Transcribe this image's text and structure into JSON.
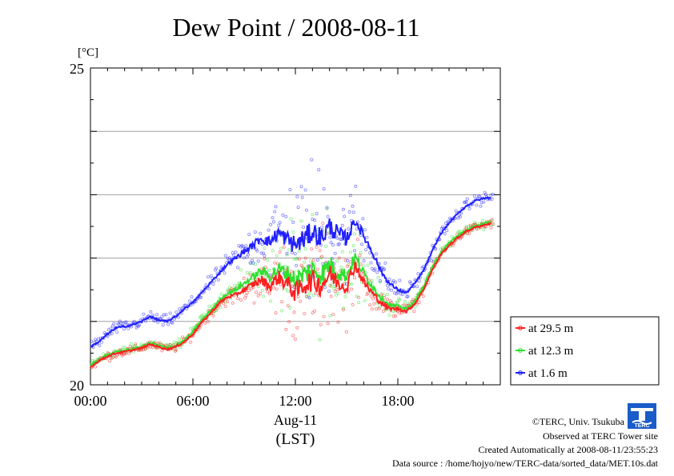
{
  "chart_data": {
    "type": "line",
    "title": "Dew Point / 2008-08-11",
    "ylabel": "[°C]",
    "xlabel": "Aug-11",
    "xlabel2": "(LST)",
    "ylim": [
      20,
      25
    ],
    "xlim": [
      0,
      24
    ],
    "y_ticks": [
      "20",
      "25"
    ],
    "x_ticks": [
      {
        "value": 0,
        "label": "00:00"
      },
      {
        "value": 6,
        "label": "06:00"
      },
      {
        "value": 12,
        "label": "12:00"
      },
      {
        "value": 18,
        "label": "18:00"
      }
    ],
    "grid": true,
    "legend_position": "right",
    "series": [
      {
        "name": "at 29.5 m",
        "color": "#ff2020",
        "x": [
          0,
          0.5,
          1,
          1.5,
          2,
          2.5,
          3,
          3.5,
          4,
          4.5,
          5,
          5.5,
          6,
          6.5,
          7,
          7.5,
          8,
          8.5,
          9,
          9.5,
          10,
          10.5,
          11,
          11.5,
          12,
          12.5,
          13,
          13.5,
          14,
          14.5,
          15,
          15.5,
          16,
          16.5,
          17,
          17.5,
          18,
          18.5,
          19,
          19.5,
          20,
          20.5,
          21,
          21.5,
          22,
          22.5,
          23,
          23.5
        ],
        "y": [
          20.28,
          20.38,
          20.45,
          20.5,
          20.52,
          20.55,
          20.58,
          20.64,
          20.6,
          20.56,
          20.6,
          20.68,
          20.8,
          20.98,
          21.12,
          21.28,
          21.38,
          21.42,
          21.5,
          21.58,
          21.66,
          21.55,
          21.7,
          21.6,
          21.45,
          21.58,
          21.65,
          21.56,
          21.75,
          21.62,
          21.55,
          21.9,
          21.62,
          21.45,
          21.3,
          21.2,
          21.2,
          21.16,
          21.28,
          21.5,
          21.8,
          22.05,
          22.2,
          22.32,
          22.42,
          22.48,
          22.52,
          22.55
        ]
      },
      {
        "name": "at 12.3 m",
        "color": "#30e030",
        "x": [
          0,
          0.5,
          1,
          1.5,
          2,
          2.5,
          3,
          3.5,
          4,
          4.5,
          5,
          5.5,
          6,
          6.5,
          7,
          7.5,
          8,
          8.5,
          9,
          9.5,
          10,
          10.5,
          11,
          11.5,
          12,
          12.5,
          13,
          13.5,
          14,
          14.5,
          15,
          15.5,
          16,
          16.5,
          17,
          17.5,
          18,
          18.5,
          19,
          19.5,
          20,
          20.5,
          21,
          21.5,
          22,
          22.5,
          23,
          23.5
        ],
        "y": [
          20.3,
          20.4,
          20.47,
          20.52,
          20.54,
          20.57,
          20.6,
          20.66,
          20.62,
          20.58,
          20.62,
          20.7,
          20.84,
          21.02,
          21.16,
          21.32,
          21.44,
          21.5,
          21.6,
          21.7,
          21.8,
          21.72,
          21.82,
          21.76,
          21.66,
          21.74,
          21.82,
          21.74,
          21.9,
          21.78,
          21.72,
          22.02,
          21.76,
          21.56,
          21.38,
          21.26,
          21.24,
          21.2,
          21.32,
          21.55,
          21.84,
          22.08,
          22.24,
          22.35,
          22.44,
          22.5,
          22.54,
          22.57
        ]
      },
      {
        "name": "at 1.6 m",
        "color": "#2020ff",
        "x": [
          0,
          0.5,
          1,
          1.5,
          2,
          2.5,
          3,
          3.5,
          4,
          4.5,
          5,
          5.5,
          6,
          6.5,
          7,
          7.5,
          8,
          8.5,
          9,
          9.5,
          10,
          10.5,
          11,
          11.5,
          12,
          12.5,
          13,
          13.5,
          14,
          14.5,
          15,
          15.5,
          16,
          16.5,
          17,
          17.5,
          18,
          18.5,
          19,
          19.5,
          20,
          20.5,
          21,
          21.5,
          22,
          22.5,
          23,
          23.5
        ],
        "y": [
          20.6,
          20.68,
          20.8,
          20.9,
          20.92,
          20.95,
          21.0,
          21.08,
          21.02,
          21.0,
          21.08,
          21.2,
          21.3,
          21.45,
          21.6,
          21.75,
          21.9,
          22.0,
          22.1,
          22.2,
          22.32,
          22.25,
          22.4,
          22.3,
          22.2,
          22.3,
          22.42,
          22.32,
          22.5,
          22.38,
          22.3,
          22.6,
          22.35,
          22.1,
          21.8,
          21.6,
          21.5,
          21.45,
          21.6,
          21.8,
          22.1,
          22.38,
          22.55,
          22.7,
          22.82,
          22.9,
          22.94,
          22.96
        ]
      }
    ]
  },
  "credits": {
    "copyright": "©TERC, Univ. Tsukuba",
    "observed": "Observed at TERC Tower site",
    "created": "Created Automatically at 2008-08-11/23:55:23",
    "source": "Data source : /home/hojyo/new/TERC-data/sorted_data/MET.10s.dat",
    "logo_text": "TERC"
  }
}
